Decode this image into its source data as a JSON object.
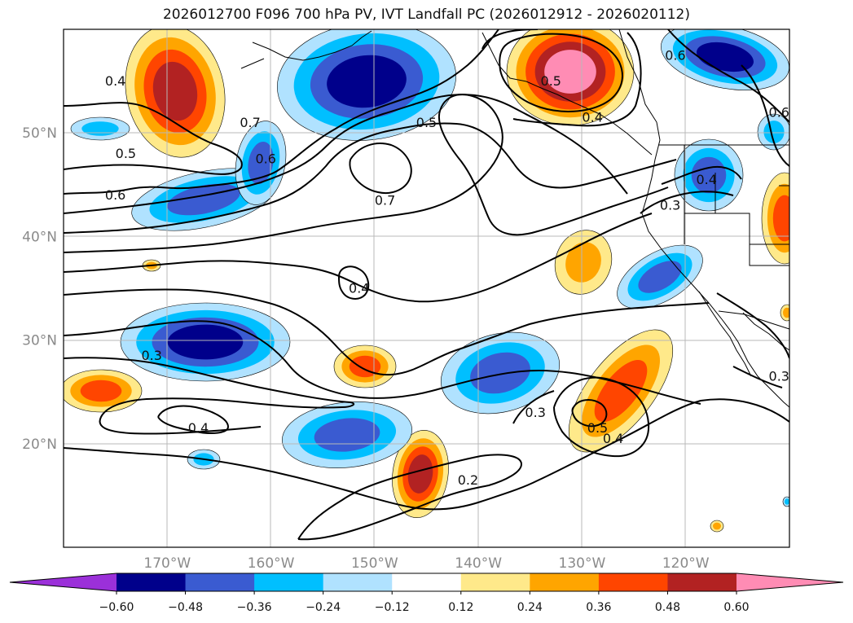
{
  "title": "2026012700 F096 700 hPa PV, IVT Landfall PC (2026012912 - 2026020112)",
  "chart_data": {
    "type": "heatmap",
    "projection": "lat-lon",
    "lon_range": [
      -180,
      -110
    ],
    "lat_range": [
      10,
      60
    ],
    "grid": true,
    "lon_ticks": [
      "170°W",
      "160°W",
      "150°W",
      "140°W",
      "130°W",
      "120°W"
    ],
    "lat_ticks": [
      "20°N",
      "30°N",
      "40°N",
      "50°N"
    ],
    "colorbar": {
      "levels": [
        -0.6,
        -0.48,
        -0.36,
        -0.24,
        -0.12,
        0.12,
        0.24,
        0.36,
        0.48,
        0.6
      ],
      "tick_labels": [
        "−0.60",
        "−0.48",
        "−0.36",
        "−0.24",
        "−0.12",
        "0.12",
        "0.24",
        "0.36",
        "0.48",
        "0.60"
      ],
      "colors": [
        "#9b30d9",
        "#00008b",
        "#3a5bd1",
        "#00bfff",
        "#b0e2ff",
        "#ffffff",
        "#ffe98a",
        "#ffa500",
        "#ff4500",
        "#b22222",
        "#ff8cb4"
      ],
      "extend": "both"
    },
    "contour_labels": [
      {
        "label": "0.7",
        "lon": -162,
        "lat": 51
      },
      {
        "label": "0.7",
        "lon": -149,
        "lat": 43.5
      },
      {
        "label": "0.6",
        "lon": -160.5,
        "lat": 47.5
      },
      {
        "label": "0.6",
        "lon": -175,
        "lat": 44
      },
      {
        "label": "0.6",
        "lon": -121,
        "lat": 57.5
      },
      {
        "label": "0.6",
        "lon": -111,
        "lat": 52
      },
      {
        "label": "0.5",
        "lon": -174,
        "lat": 48
      },
      {
        "label": "0.5",
        "lon": -145,
        "lat": 51
      },
      {
        "label": "0.5",
        "lon": -133,
        "lat": 55
      },
      {
        "label": "0.5",
        "lon": -128.5,
        "lat": 21.5
      },
      {
        "label": "0.4",
        "lon": -175,
        "lat": 55
      },
      {
        "label": "0.4",
        "lon": -129,
        "lat": 51.5
      },
      {
        "label": "0.4",
        "lon": -118,
        "lat": 45.5
      },
      {
        "label": "0.4",
        "lon": -151.5,
        "lat": 35
      },
      {
        "label": "0.4",
        "lon": -167,
        "lat": 21.5
      },
      {
        "label": "0.4",
        "lon": -127,
        "lat": 20.5
      },
      {
        "label": "0.3",
        "lon": -171.5,
        "lat": 28.5
      },
      {
        "label": "0.3",
        "lon": -121.5,
        "lat": 43
      },
      {
        "label": "0.3",
        "lon": -134.5,
        "lat": 23
      },
      {
        "label": "0.3",
        "lon": -111,
        "lat": 26.5
      },
      {
        "label": "0.2",
        "lon": -141,
        "lat": 16.5
      }
    ]
  }
}
